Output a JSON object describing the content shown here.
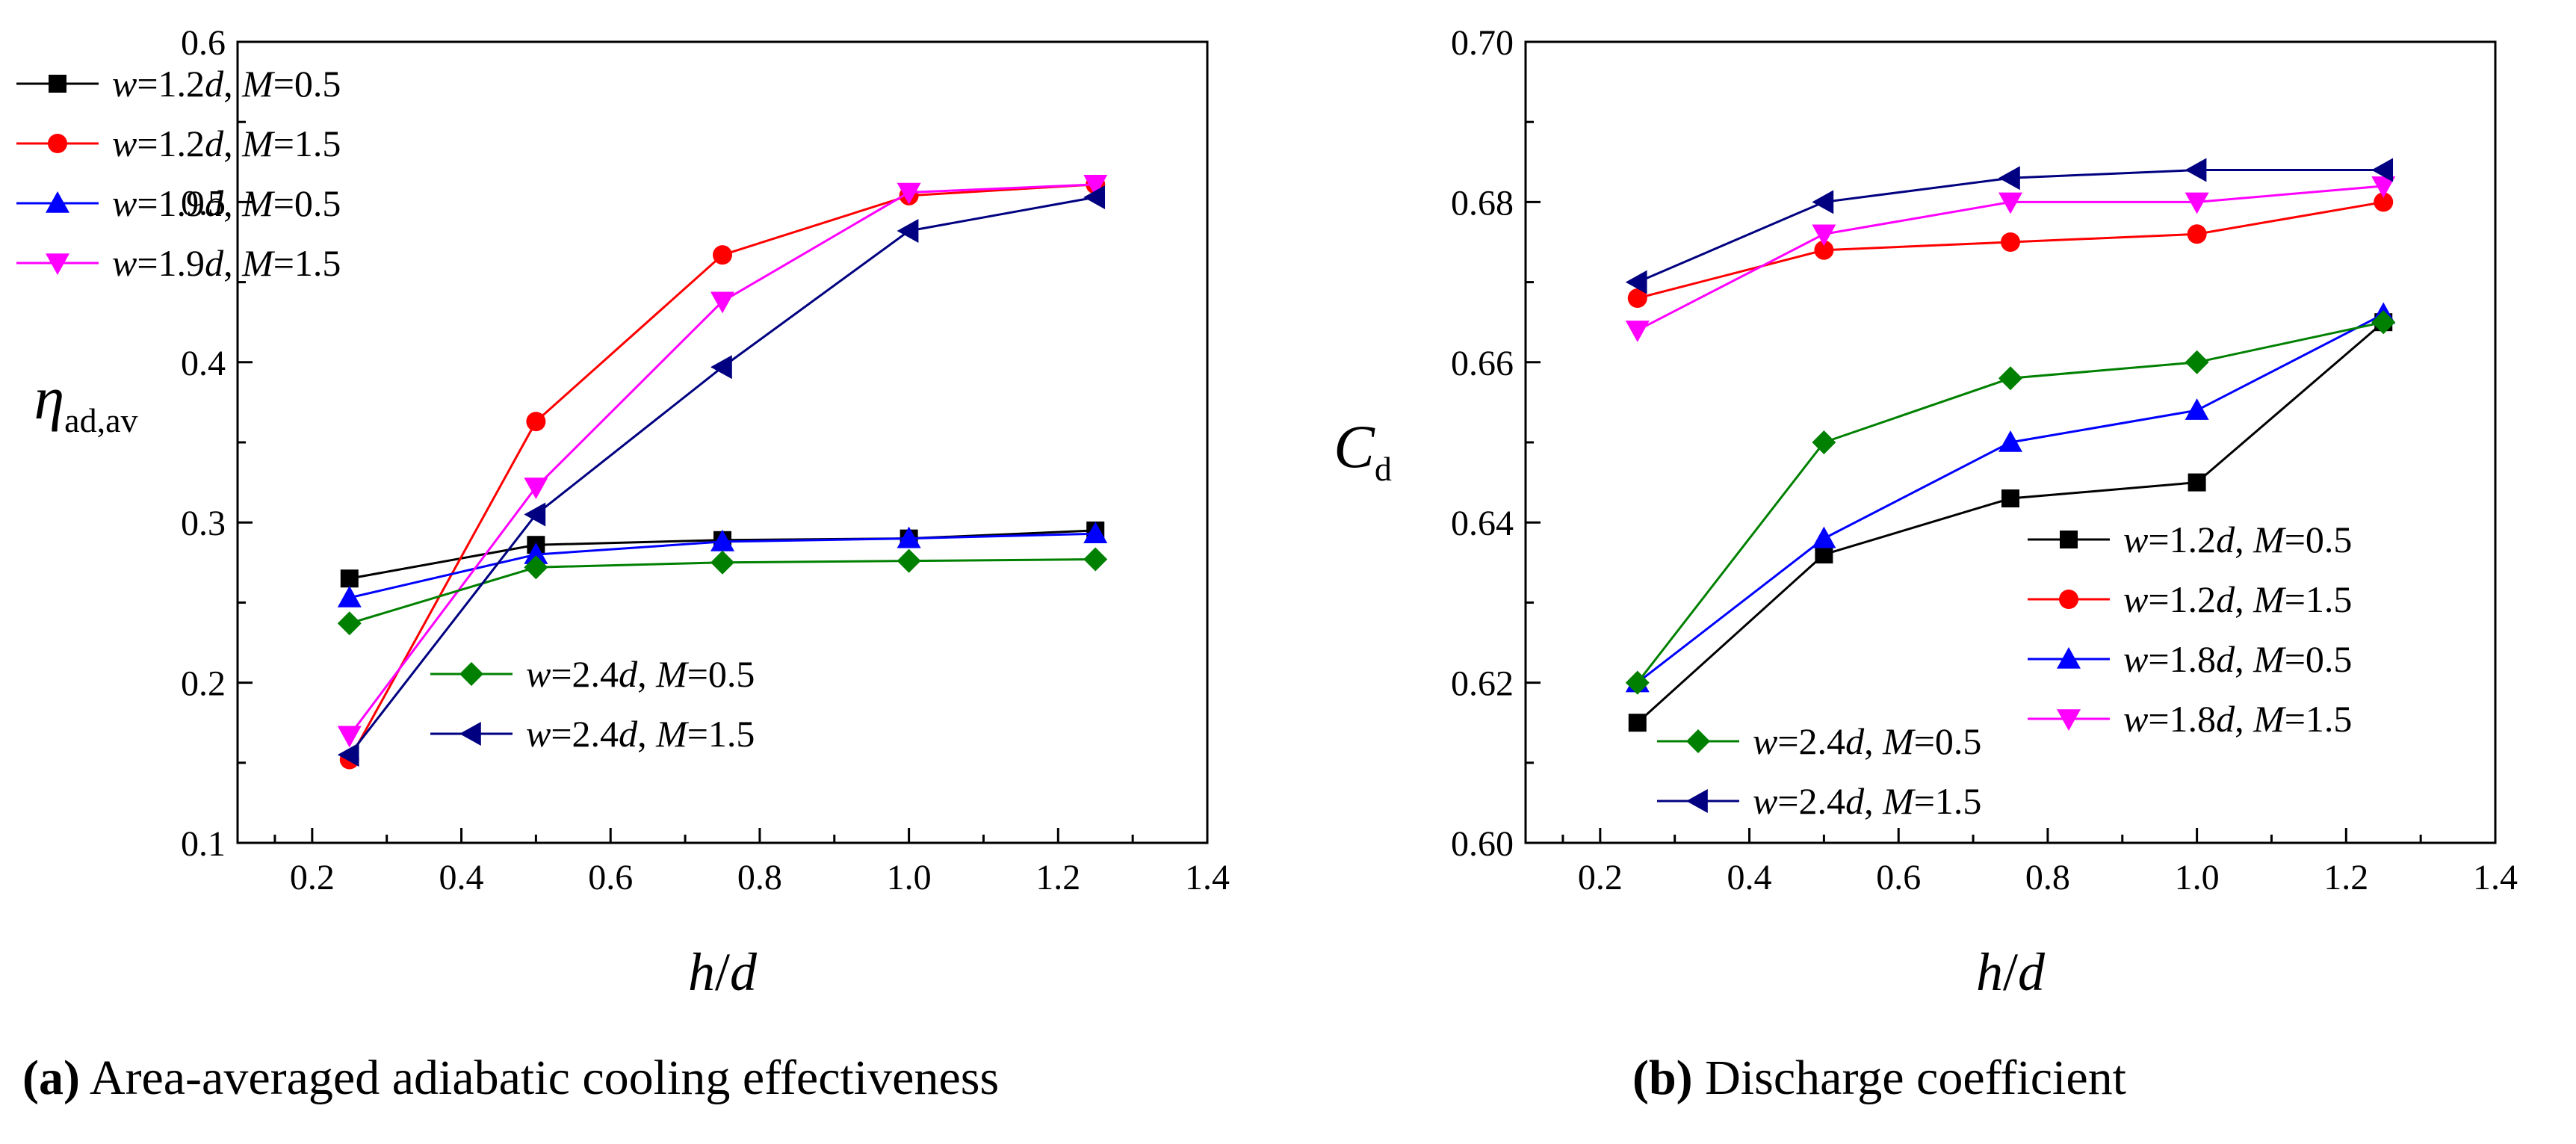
{
  "chart_data": [
    {
      "id": "a",
      "type": "line",
      "ylabel_symbol": "η",
      "ylabel_sub": "ad,av",
      "xlabel_var1": "h",
      "xlabel_slash": "/",
      "xlabel_var2": "d",
      "xlim": [
        0.1,
        1.4
      ],
      "ylim": [
        0.1,
        0.6
      ],
      "xticks": [
        0.2,
        0.4,
        0.6,
        0.8,
        1.0,
        1.2,
        1.4
      ],
      "xtick_labels": [
        "0.2",
        "0.4",
        "0.6",
        "0.8",
        "1.0",
        "1.2",
        "1.4"
      ],
      "yticks": [
        0.1,
        0.2,
        0.3,
        0.4,
        0.5,
        0.6
      ],
      "ytick_labels": [
        "0.1",
        "0.2",
        "0.3",
        "0.4",
        "0.5",
        "0.6"
      ],
      "x": [
        0.25,
        0.5,
        0.75,
        1.0,
        1.25
      ],
      "series": [
        {
          "name": "w=1.2d, M=0.5",
          "w": "1.2",
          "M": "0.5",
          "color": "#000000",
          "marker": "square",
          "values": [
            0.265,
            0.286,
            0.289,
            0.29,
            0.295
          ]
        },
        {
          "name": "w=1.2d, M=1.5",
          "w": "1.2",
          "M": "1.5",
          "color": "#ff0000",
          "marker": "circle",
          "values": [
            0.152,
            0.363,
            0.467,
            0.504,
            0.511
          ]
        },
        {
          "name": "w=1.9d, M=0.5",
          "w": "1.9",
          "M": "0.5",
          "color": "#0000ff",
          "marker": "triangle-up",
          "values": [
            0.253,
            0.28,
            0.288,
            0.29,
            0.293
          ]
        },
        {
          "name": "w=1.9d, M=1.5",
          "w": "1.9",
          "M": "1.5",
          "color": "#ff00ff",
          "marker": "triangle-down",
          "values": [
            0.167,
            0.322,
            0.438,
            0.506,
            0.511
          ]
        },
        {
          "name": "w=2.4d, M=0.5",
          "w": "2.4",
          "M": "0.5",
          "color": "#008000",
          "marker": "diamond",
          "values": [
            0.237,
            0.272,
            0.275,
            0.276,
            0.277
          ]
        },
        {
          "name": "w=2.4d, M=1.5",
          "w": "2.4",
          "M": "1.5",
          "color": "#000080",
          "marker": "triangle-left",
          "values": [
            0.155,
            0.305,
            0.397,
            0.482,
            0.503
          ]
        }
      ],
      "caption_label": "(a)",
      "caption_text": "Area-averaged adiabatic cooling effectiveness"
    },
    {
      "id": "b",
      "type": "line",
      "ylabel_symbol": "C",
      "ylabel_sub": "d",
      "xlabel_var1": "h",
      "xlabel_slash": "/",
      "xlabel_var2": "d",
      "xlim": [
        0.1,
        1.4
      ],
      "ylim": [
        0.6,
        0.7
      ],
      "xticks": [
        0.2,
        0.4,
        0.6,
        0.8,
        1.0,
        1.2,
        1.4
      ],
      "xtick_labels": [
        "0.2",
        "0.4",
        "0.6",
        "0.8",
        "1.0",
        "1.2",
        "1.4"
      ],
      "yticks": [
        0.6,
        0.62,
        0.64,
        0.66,
        0.68,
        0.7
      ],
      "ytick_labels": [
        "0.60",
        "0.62",
        "0.64",
        "0.66",
        "0.68",
        "0.70"
      ],
      "x": [
        0.25,
        0.5,
        0.75,
        1.0,
        1.25
      ],
      "series": [
        {
          "name": "w=1.2d, M=0.5",
          "w": "1.2",
          "M": "0.5",
          "color": "#000000",
          "marker": "square",
          "values": [
            0.615,
            0.636,
            0.643,
            0.645,
            0.665
          ]
        },
        {
          "name": "w=1.2d, M=1.5",
          "w": "1.2",
          "M": "1.5",
          "color": "#ff0000",
          "marker": "circle",
          "values": [
            0.668,
            0.674,
            0.675,
            0.676,
            0.68
          ]
        },
        {
          "name": "w=1.8d, M=0.5",
          "w": "1.8",
          "M": "0.5",
          "color": "#0000ff",
          "marker": "triangle-up",
          "values": [
            0.62,
            0.638,
            0.65,
            0.654,
            0.666
          ]
        },
        {
          "name": "w=1.8d, M=1.5",
          "w": "1.8",
          "M": "1.5",
          "color": "#ff00ff",
          "marker": "triangle-down",
          "values": [
            0.664,
            0.676,
            0.68,
            0.68,
            0.682
          ]
        },
        {
          "name": "w=2.4d, M=0.5",
          "w": "2.4",
          "M": "0.5",
          "color": "#008000",
          "marker": "diamond",
          "values": [
            0.62,
            0.65,
            0.658,
            0.66,
            0.665
          ]
        },
        {
          "name": "w=2.4d, M=1.5",
          "w": "2.4",
          "M": "1.5",
          "color": "#000080",
          "marker": "triangle-left",
          "values": [
            0.67,
            0.68,
            0.683,
            0.684,
            0.684
          ]
        }
      ],
      "caption_label": "(b)",
      "caption_text": "Discharge coefficient"
    }
  ]
}
